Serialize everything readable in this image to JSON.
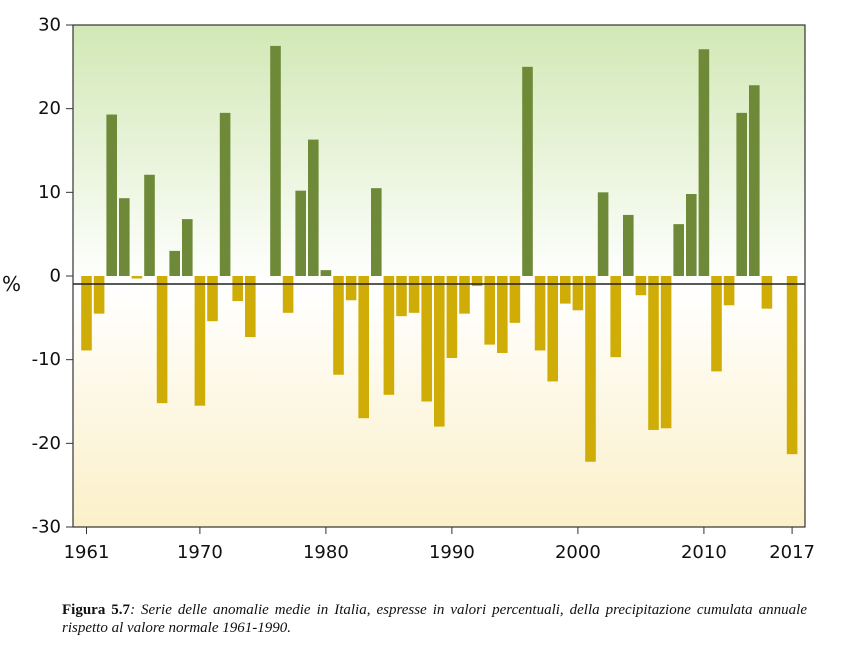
{
  "chart_data": {
    "type": "bar",
    "ylabel": "%",
    "ylim": [
      -30,
      30
    ],
    "yticks": [
      30,
      20,
      10,
      0,
      -10,
      -20,
      -30
    ],
    "xticks": [
      1961,
      1970,
      1980,
      1990,
      2000,
      2010,
      2017
    ],
    "x": [
      1961,
      1962,
      1963,
      1964,
      1965,
      1966,
      1967,
      1968,
      1969,
      1970,
      1971,
      1972,
      1973,
      1974,
      1975,
      1976,
      1977,
      1978,
      1979,
      1980,
      1981,
      1982,
      1983,
      1984,
      1985,
      1986,
      1987,
      1988,
      1989,
      1990,
      1991,
      1992,
      1993,
      1994,
      1995,
      1996,
      1997,
      1998,
      1999,
      2000,
      2001,
      2002,
      2003,
      2004,
      2005,
      2006,
      2007,
      2008,
      2009,
      2010,
      2011,
      2012,
      2013,
      2014,
      2015,
      2016,
      2017
    ],
    "values": [
      -8.9,
      -4.5,
      19.3,
      9.3,
      -0.3,
      12.1,
      -15.2,
      3.0,
      6.8,
      -15.5,
      -5.4,
      19.5,
      -3.0,
      -7.3,
      0,
      27.5,
      -4.4,
      10.2,
      16.3,
      0.7,
      -11.8,
      -2.9,
      -17.0,
      10.5,
      -14.2,
      -4.8,
      -4.4,
      -15.0,
      -18.0,
      -9.8,
      -4.5,
      -1.2,
      -8.2,
      -9.2,
      -5.6,
      25.0,
      -8.9,
      -12.6,
      -3.3,
      -4.1,
      -22.2,
      10.0,
      -9.7,
      7.3,
      -2.3,
      -18.4,
      -18.2,
      6.2,
      9.8,
      27.1,
      -11.4,
      -3.5,
      19.5,
      22.8,
      -3.9,
      0,
      -21.3
    ],
    "colors": {
      "positive": "#6e8a38",
      "negative": "#cfad06"
    },
    "background": {
      "top": "#d2e8b5",
      "bottom": "#fbf0c8"
    },
    "grid": false
  },
  "caption": {
    "label": "Figura 5.7",
    "text": ": Serie delle anomalie medie in Italia, espresse in valori percentuali, della precipitazione cumulata annuale rispetto al valore normale 1961-1990."
  }
}
